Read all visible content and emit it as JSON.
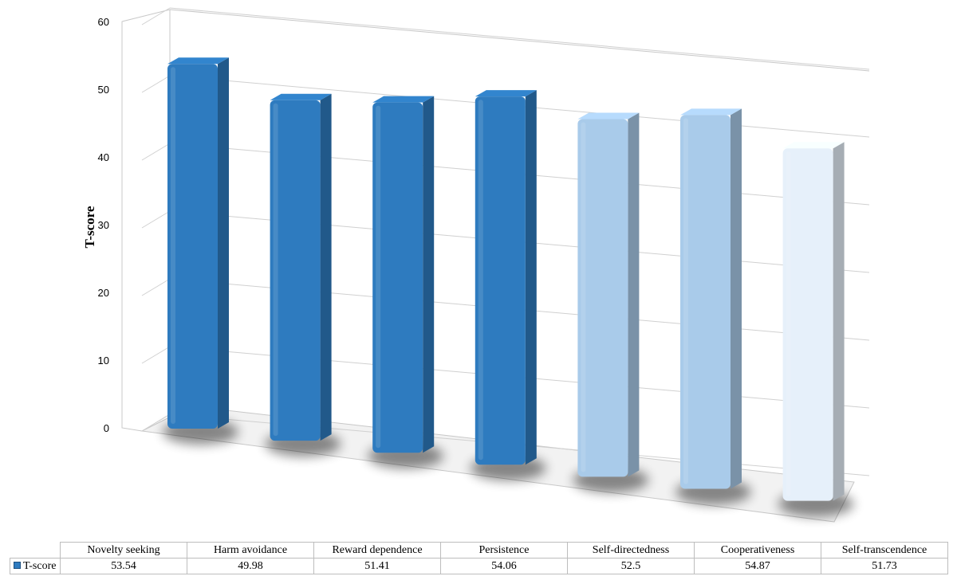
{
  "chart_data": {
    "type": "bar",
    "title": "",
    "xlabel": "",
    "ylabel": "T-score",
    "ylim": [
      0,
      60
    ],
    "yticks": [
      "0",
      "10",
      "20",
      "30",
      "40",
      "50",
      "60"
    ],
    "grid": true,
    "categories": [
      "Novelty seeking",
      "Harm avoidance",
      "Reward dependence",
      "Persistence",
      "Self-directedness",
      "Cooperativeness",
      "Self-transcendence"
    ],
    "series": [
      {
        "name": "T-score",
        "values": [
          53.54,
          49.98,
          51.41,
          54.06,
          52.5,
          54.87,
          51.73
        ],
        "value_labels": [
          "53.54",
          "49.98",
          "51.41",
          "54.06",
          "52.5",
          "54.87",
          "51.73"
        ]
      }
    ],
    "bar_colors": [
      "#2e7bbf",
      "#2e7bbf",
      "#2e7bbf",
      "#2e7bbf",
      "#a9cbea",
      "#a9cbea",
      "#e6f0fa"
    ],
    "legend_color": "#2e7bbf",
    "data_table": true
  }
}
